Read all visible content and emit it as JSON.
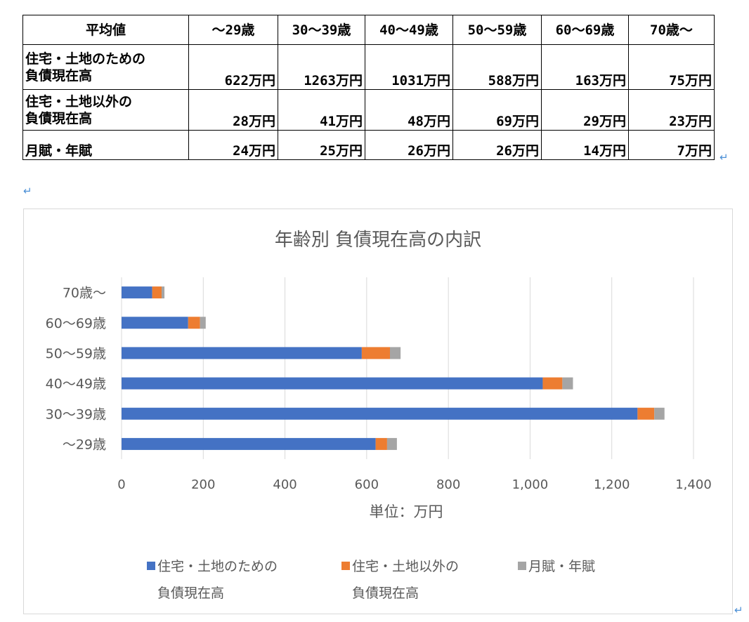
{
  "table": {
    "headers": [
      "平均値",
      "～29歳",
      "30～39歳",
      "40～49歳",
      "50～59歳",
      "60～69歳",
      "70歳～"
    ],
    "rows": [
      {
        "label": [
          "住宅・土地のための",
          "負債現在高"
        ],
        "values": [
          "622万円",
          "1263万円",
          "1031万円",
          "588万円",
          "163万円",
          "75万円"
        ]
      },
      {
        "label": [
          "住宅・土地以外の",
          "負債現在高"
        ],
        "values": [
          "28万円",
          "41万円",
          "48万円",
          "69万円",
          "29万円",
          "23万円"
        ]
      },
      {
        "label": [
          "月賦・年賦"
        ],
        "values": [
          "24万円",
          "25万円",
          "26万円",
          "26万円",
          "14万円",
          "7万円"
        ]
      }
    ]
  },
  "marks": {
    "paragraph": "↵"
  },
  "chart_data": {
    "type": "bar",
    "orientation": "horizontal",
    "stacked": true,
    "title": "年齢別 負債現在高の内訳",
    "xlabel": "単位：万円",
    "ylabel": "",
    "xlim": [
      0,
      1400
    ],
    "xticks": [
      0,
      200,
      400,
      600,
      800,
      1000,
      1200,
      1400
    ],
    "xtick_labels": [
      "0",
      "200",
      "400",
      "600",
      "800",
      "1,000",
      "1,200",
      "1,400"
    ],
    "categories": [
      "～29歳",
      "30～39歳",
      "40～49歳",
      "50～59歳",
      "60～69歳",
      "70歳～"
    ],
    "grid": "vertical",
    "legend_position": "bottom",
    "series": [
      {
        "name": "住宅・土地のための負債現在高",
        "legend_lines": [
          "住宅・土地のための",
          "負債現在高"
        ],
        "color": "#4472c4",
        "values": [
          622,
          1263,
          1031,
          588,
          163,
          75
        ]
      },
      {
        "name": "住宅・土地以外の負債現在高",
        "legend_lines": [
          "住宅・土地以外の",
          "負債現在高"
        ],
        "color": "#ed7d31",
        "values": [
          28,
          41,
          48,
          69,
          29,
          23
        ]
      },
      {
        "name": "月賦・年賦",
        "legend_lines": [
          "月賦・年賦"
        ],
        "color": "#a5a5a5",
        "values": [
          24,
          25,
          26,
          26,
          14,
          7
        ]
      }
    ]
  }
}
